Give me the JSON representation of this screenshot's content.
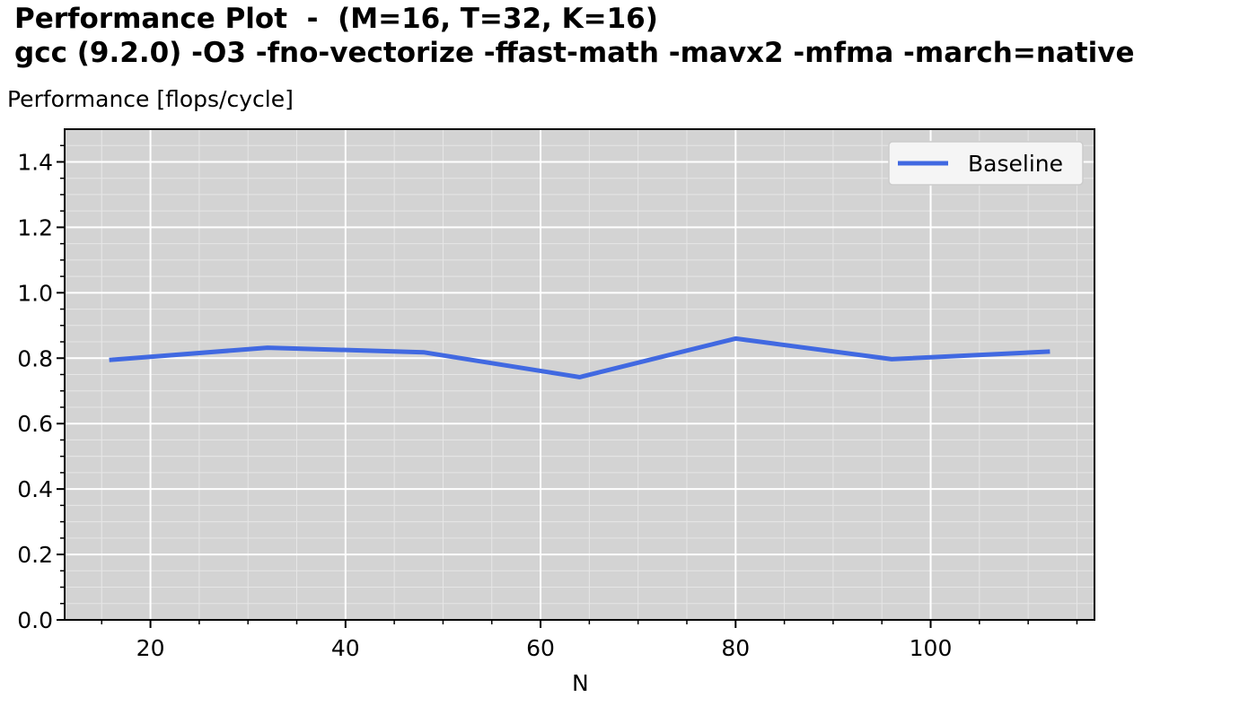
{
  "chart_data": {
    "type": "line",
    "title_line1": "Performance Plot  -  (M=16, T=32, K=16)",
    "title_line2": "gcc (9.2.0) -O3 -fno-vectorize -ffast-math -mavx2 -mfma -march=native",
    "xlabel": "N",
    "ylabel": "Performance [flops/cycle]",
    "xlim": [
      11.2,
      116.8
    ],
    "ylim": [
      0.0,
      1.5
    ],
    "x_ticks": [
      20,
      40,
      60,
      80,
      100
    ],
    "x_tick_labels": [
      "20",
      "40",
      "60",
      "80",
      "100"
    ],
    "y_ticks": [
      0.0,
      0.2,
      0.4,
      0.6,
      0.8,
      1.0,
      1.2,
      1.4
    ],
    "y_tick_labels": [
      "0.0",
      "0.2",
      "0.4",
      "0.6",
      "0.8",
      "1.0",
      "1.2",
      "1.4"
    ],
    "grid": true,
    "legend_position": "top-right",
    "series": [
      {
        "name": "Baseline",
        "color": "#4169e1",
        "x": [
          16,
          32,
          48,
          64,
          80,
          96,
          112
        ],
        "y": [
          0.795,
          0.832,
          0.818,
          0.742,
          0.86,
          0.797,
          0.82
        ]
      }
    ]
  }
}
